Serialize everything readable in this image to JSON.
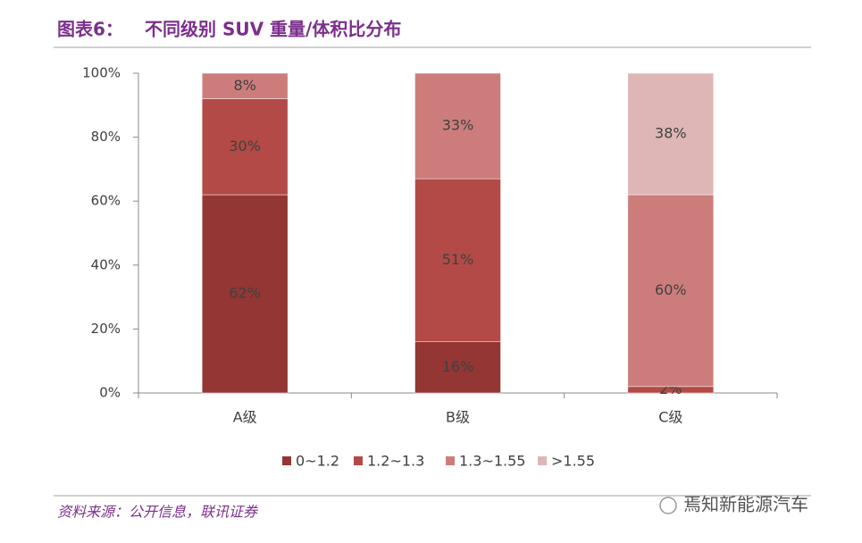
{
  "header": {
    "label": "图表6：",
    "title": "不同级别 SUV 重量/体积比分布"
  },
  "chart_data": {
    "type": "stacked_bar",
    "categories": [
      "A级",
      "B级",
      "C级"
    ],
    "series": [
      {
        "name": "0~1.2",
        "color": "#943634",
        "values": [
          62,
          16,
          null
        ],
        "value_labels": [
          "62%",
          "16%",
          null
        ]
      },
      {
        "name": "1.2~1.3",
        "color": "#b34a47",
        "values": [
          30,
          51,
          2
        ],
        "value_labels": [
          "30%",
          "51%",
          "2%"
        ]
      },
      {
        "name": "1.3~1.55",
        "color": "#cc7d7b",
        "values": [
          8,
          33,
          60
        ],
        "value_labels": [
          "8%",
          "33%",
          "60%"
        ]
      },
      {
        "name": ">1.55",
        "color": "#deb6b6",
        "values": [
          null,
          null,
          38
        ],
        "value_labels": [
          null,
          null,
          "38%"
        ]
      }
    ],
    "ylim": [
      0,
      100
    ],
    "yticks": [
      {
        "value": 0,
        "label": "0%"
      },
      {
        "value": 20,
        "label": "20%"
      },
      {
        "value": 40,
        "label": "40%"
      },
      {
        "value": 60,
        "label": "60%"
      },
      {
        "value": 80,
        "label": "80%"
      },
      {
        "value": 100,
        "label": "100%"
      }
    ],
    "legend": "bottom"
  },
  "footer": {
    "source": "资料来源：公开信息，联讯证券",
    "watermark": "焉知新能源汽车"
  }
}
